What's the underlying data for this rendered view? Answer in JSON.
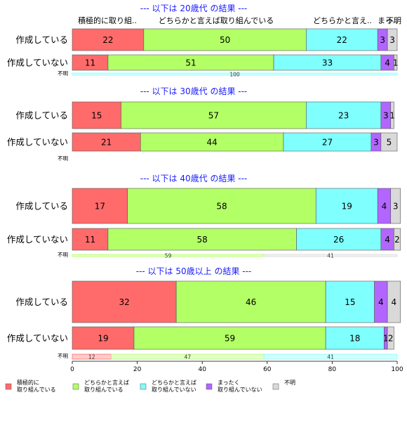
{
  "chart_data": {
    "type": "bar",
    "orientation": "horizontal-stacked-percent",
    "categories": [
      "積極的に取り組んでいる",
      "どちらかと言えば取り組んでいる",
      "どちらかと言えば取り組んでいない",
      "まったく取り組んでいない",
      "不明"
    ],
    "colors": [
      "#ff6b6b",
      "#b3ff66",
      "#80ffff",
      "#b266ff",
      "#d9d9d9"
    ],
    "column_headers": [
      "積極的に取り組..",
      "どちらかと言えば取り組んでいる",
      "どちらかと言え..",
      "まっ..",
      "不明"
    ],
    "xlim": [
      0,
      100
    ],
    "xticks": [
      "0",
      "20",
      "40",
      "60",
      "80",
      "100"
    ],
    "legend": {
      "position": "bottom",
      "items": [
        [
          "積極的に",
          "取り組んでいる"
        ],
        [
          "どちらかと言えば",
          "取り組んでいる"
        ],
        [
          "どちらかと言えば",
          "取り組んでいない"
        ],
        [
          "まったく",
          "取り組んでいない"
        ],
        [
          "不明"
        ]
      ]
    },
    "panels": [
      {
        "title": "--- 以下は 20歳代 の結果 ---",
        "rows": [
          {
            "label": "作成している",
            "values": [
              22,
              50,
              22,
              3,
              3
            ]
          },
          {
            "label": "作成していない",
            "values": [
              11,
              51,
              33,
              4,
              1
            ]
          }
        ],
        "unknown": {
          "label": "不明",
          "values": [
            0,
            0,
            100,
            0,
            0
          ],
          "value_labels": [
            "",
            "",
            "100",
            "",
            ""
          ]
        }
      },
      {
        "title": "--- 以下は 30歳代 の結果 ---",
        "rows": [
          {
            "label": "作成している",
            "values": [
              15,
              57,
              23,
              3,
              1
            ]
          },
          {
            "label": "作成していない",
            "values": [
              21,
              44,
              27,
              3,
              5
            ]
          }
        ],
        "unknown": {
          "label": "不明",
          "values": [
            0,
            0,
            0,
            0,
            0
          ],
          "value_labels": [
            "",
            "",
            "",
            "",
            ""
          ]
        }
      },
      {
        "title": "--- 以下は 40歳代 の結果 ---",
        "rows": [
          {
            "label": "作成している",
            "values": [
              17,
              58,
              19,
              4,
              3
            ]
          },
          {
            "label": "作成していない",
            "values": [
              11,
              58,
              26,
              4,
              2
            ]
          }
        ],
        "unknown": {
          "label": "不明",
          "values": [
            0,
            59,
            0,
            0,
            41
          ],
          "value_labels": [
            "",
            "59",
            "",
            "",
            "41"
          ]
        }
      },
      {
        "title": "--- 以下は 50歳以上 の結果 ---",
        "rows": [
          {
            "label": "作成している",
            "values": [
              32,
              46,
              15,
              4,
              4
            ]
          },
          {
            "label": "作成していない",
            "values": [
              19,
              59,
              18,
              1,
              2
            ]
          }
        ],
        "unknown": {
          "label": "不明",
          "values": [
            12,
            47,
            41,
            0,
            0
          ],
          "value_labels": [
            "12",
            "47",
            "41",
            "",
            ""
          ]
        }
      }
    ]
  }
}
